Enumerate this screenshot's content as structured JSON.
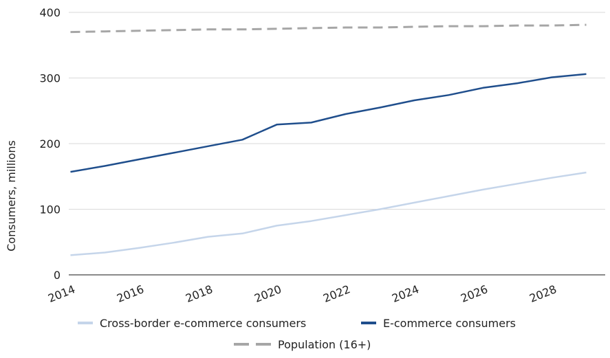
{
  "chart_data": {
    "type": "line",
    "title": "",
    "xlabel": "",
    "ylabel": "Consumers, millions",
    "x": [
      2014,
      2015,
      2016,
      2017,
      2018,
      2019,
      2020,
      2021,
      2022,
      2023,
      2024,
      2025,
      2026,
      2027,
      2028,
      2029
    ],
    "x_ticks": [
      "2014",
      "2016",
      "2018",
      "2020",
      "2022",
      "2024",
      "2026",
      "2028"
    ],
    "y_ticks": [
      "0",
      "100",
      "200",
      "300",
      "400"
    ],
    "ylim": [
      0,
      400
    ],
    "grid": "horizontal",
    "legend_position": "bottom",
    "series": [
      {
        "name": "Cross-border e-commerce consumers",
        "color": "#c5d5ea",
        "style": "solid",
        "values": [
          30,
          34,
          41,
          49,
          58,
          63,
          75,
          82,
          91,
          100,
          110,
          120,
          130,
          139,
          148,
          156
        ]
      },
      {
        "name": "E-commerce consumers",
        "color": "#1f4e8c",
        "style": "solid",
        "values": [
          157,
          166,
          176,
          186,
          196,
          206,
          229,
          232,
          245,
          255,
          266,
          274,
          285,
          292,
          301,
          306
        ]
      },
      {
        "name": "Population (16+)",
        "color": "#a6a6a6",
        "style": "dashed",
        "values": [
          370,
          371,
          372,
          373,
          374,
          374,
          375,
          376,
          377,
          377,
          378,
          379,
          379,
          380,
          380,
          381
        ]
      }
    ]
  }
}
